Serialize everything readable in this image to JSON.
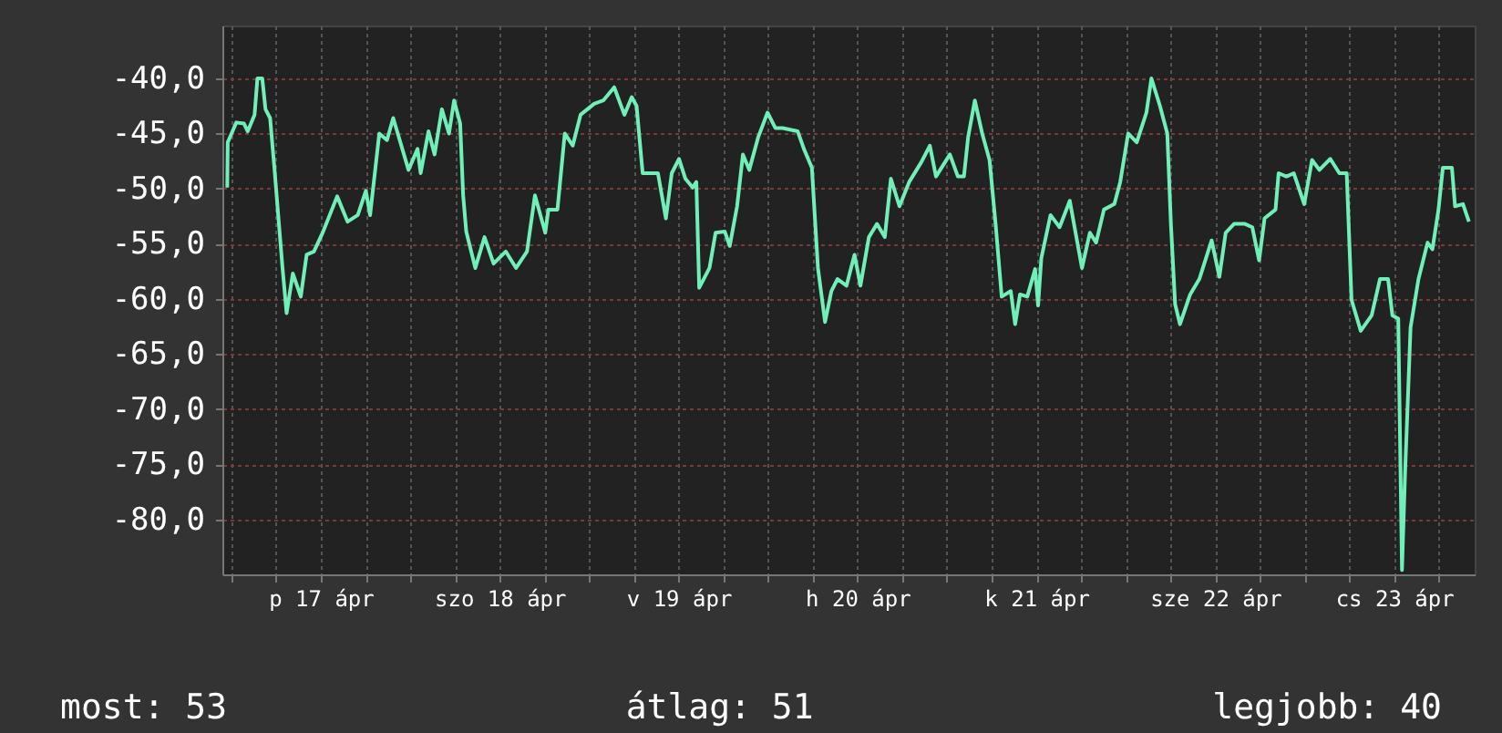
{
  "chart_data": {
    "type": "line",
    "annotations": [
      "most: 53",
      "átlag: 51",
      "legjobb: 40"
    ],
    "x": [
      "--04-16T23:27",
      "--04-16T23:31",
      "--04-17T00:40",
      "--04-17T01:42",
      "--04-17T02:12",
      "--04-17T03:07",
      "--04-17T03:30",
      "--04-17T04:09",
      "--04-17T04:35",
      "--04-17T05:12",
      "--04-17T05:48",
      "--04-17T06:52",
      "--04-17T07:25",
      "--04-17T08:15",
      "--04-17T09:19",
      "--04-17T10:06",
      "--04-17T11:05",
      "--04-17T12:19",
      "--04-17T14:12",
      "--04-17T15:36",
      "--04-17T16:58",
      "--04-17T18:03",
      "--04-17T18:37",
      "--04-17T19:51",
      "--04-17T20:53",
      "--04-17T21:43",
      "--04-17T23:46",
      "--04-18T00:59",
      "--04-18T01:24",
      "--04-18T02:27",
      "--04-18T03:16",
      "--04-18T04:15",
      "--04-18T05:12",
      "--04-18T05:53",
      "--04-18T06:42",
      "--04-18T07:06",
      "--04-18T07:31",
      "--04-18T08:44",
      "--04-18T09:58",
      "--04-18T11:11",
      "--04-18T12:49",
      "--04-18T14:12",
      "--04-18T15:40",
      "--04-18T16:44",
      "--04-18T18:07",
      "--04-18T18:32",
      "--04-18T19:45",
      "--04-18T20:44",
      "--04-18T21:48",
      "--04-18T22:51",
      "--04-19T00:40",
      "--04-19T01:54",
      "--04-19T03:22",
      "--04-19T04:44",
      "--04-19T05:43",
      "--04-19T06:22",
      "--04-19T07:11",
      "--04-19T09:14",
      "--04-19T10:18",
      "--04-19T11:05",
      "--04-19T12:04",
      "--04-19T12:55",
      "--04-19T13:54",
      "--04-19T14:23",
      "--04-19T14:46",
      "--04-19T16:09",
      "--04-19T16:58",
      "--04-19T18:12",
      "--04-19T18:52",
      "--04-19T19:51",
      "--04-19T20:38",
      "--04-19T21:29",
      "--04-19T22:42",
      "--04-19T23:56",
      "--04-20T00:59",
      "--04-20T01:58",
      "--04-20T03:59",
      "--04-20T04:49",
      "--04-20T05:53",
      "--04-20T06:42",
      "--04-20T07:39",
      "--04-20T08:30",
      "--04-20T09:19",
      "--04-20T10:32",
      "--04-20T11:36",
      "--04-20T12:24",
      "--04-20T13:32",
      "--04-20T14:37",
      "--04-20T15:40",
      "--04-20T16:29",
      "--04-20T17:38",
      "--04-20T18:56",
      "--04-20T20:34",
      "--04-20T21:43",
      "--04-20T22:32",
      "--04-21T00:24",
      "--04-21T01:28",
      "--04-21T02:17",
      "--04-21T02:51",
      "--04-21T03:45",
      "--04-21T04:44",
      "--04-21T05:43",
      "--04-21T06:32",
      "--04-21T07:21",
      "--04-21T08:34",
      "--04-21T09:09",
      "--04-21T09:48",
      "--04-21T10:47",
      "--04-21T11:50",
      "--04-21T12:14",
      "--04-21T12:40",
      "--04-21T13:54",
      "--04-21T15:07",
      "--04-21T16:29",
      "--04-21T18:07",
      "--04-21T19:11",
      "--04-21T20:01",
      "--04-21T21:04",
      "--04-21T22:28",
      "--04-21T23:15",
      "--04-22T00:19",
      "--04-22T01:28",
      "--04-22T02:46",
      "--04-22T03:26",
      "--04-22T04:35",
      "--04-22T05:34",
      "--04-22T06:03",
      "--04-22T06:37",
      "--04-22T07:16",
      "--04-22T08:38",
      "--04-22T09:52",
      "--04-22T11:31",
      "--04-22T12:33",
      "--04-22T13:24",
      "--04-22T14:31",
      "--04-22T15:59",
      "--04-22T16:58",
      "--04-22T17:53",
      "--04-22T18:37",
      "--04-22T20:05",
      "--04-22T20:30",
      "--04-22T21:33",
      "--04-22T22:32",
      "--04-22T23:56",
      "--04-23T00:59",
      "--04-23T01:58",
      "--04-23T03:26",
      "--04-23T04:39",
      "--04-23T05:38",
      "--04-23T06:17",
      "--04-23T07:31",
      "--04-23T08:59",
      "--04-23T10:06",
      "--04-23T11:11",
      "--04-23T11:46",
      "--04-23T12:33",
      "--04-23T13:03",
      "--04-23T13:28",
      "--04-23T14:12",
      "--04-23T15:16",
      "--04-23T16:29",
      "--04-23T17:08",
      "--04-23T17:57",
      "--04-23T18:32",
      "--04-23T19:45",
      "--04-23T20:10",
      "--04-23T21:14",
      "--04-23T22:02"
    ],
    "series": [
      {
        "color": "#70f0b8",
        "values": [
          -49.9,
          -45.8,
          -44.0,
          -44.1,
          -44.8,
          -43.3,
          -40.0,
          -40.0,
          -42.8,
          -43.6,
          -48.3,
          -57.2,
          -61.3,
          -57.7,
          -59.8,
          -56.0,
          -55.7,
          -53.9,
          -50.7,
          -53.0,
          -52.4,
          -50.2,
          -52.4,
          -45.0,
          -45.6,
          -43.6,
          -48.3,
          -46.4,
          -48.6,
          -44.8,
          -46.9,
          -42.8,
          -45.0,
          -42.0,
          -44.1,
          -50.6,
          -53.9,
          -57.2,
          -54.4,
          -56.8,
          -55.7,
          -57.2,
          -55.7,
          -50.6,
          -54.0,
          -51.9,
          -51.9,
          -45.0,
          -46.1,
          -43.3,
          -42.3,
          -42.0,
          -40.8,
          -43.3,
          -41.7,
          -42.5,
          -48.6,
          -48.6,
          -52.7,
          -48.6,
          -47.3,
          -49.1,
          -49.9,
          -49.4,
          -59.0,
          -57.2,
          -54.0,
          -53.9,
          -55.2,
          -51.6,
          -46.9,
          -48.3,
          -45.3,
          -43.1,
          -44.5,
          -44.5,
          -44.8,
          -46.4,
          -48.1,
          -57.2,
          -62.1,
          -59.3,
          -58.2,
          -58.8,
          -56.0,
          -58.8,
          -54.4,
          -53.2,
          -54.4,
          -49.1,
          -51.6,
          -49.4,
          -47.6,
          -46.1,
          -48.9,
          -46.9,
          -48.9,
          -48.9,
          -45.3,
          -42.0,
          -45.0,
          -47.4,
          -53.2,
          -59.8,
          -59.3,
          -62.3,
          -59.6,
          -59.8,
          -57.3,
          -60.6,
          -56.3,
          -52.4,
          -53.5,
          -51.1,
          -57.2,
          -54.0,
          -54.9,
          -51.9,
          -51.4,
          -49.4,
          -45.0,
          -45.8,
          -43.1,
          -40.0,
          -42.5,
          -45.0,
          -53.2,
          -60.5,
          -62.3,
          -59.6,
          -58.2,
          -54.7,
          -58.0,
          -54.0,
          -53.2,
          -53.2,
          -53.5,
          -56.5,
          -52.7,
          -51.9,
          -48.6,
          -48.9,
          -48.6,
          -51.4,
          -47.4,
          -48.3,
          -47.3,
          -48.6,
          -48.6,
          -60.1,
          -62.9,
          -61.5,
          -58.2,
          -58.2,
          -61.5,
          -61.8,
          -84.6,
          -75.8,
          -62.6,
          -58.2,
          -54.9,
          -55.5,
          -51.9,
          -48.1,
          -48.1,
          -51.6,
          -51.4,
          -53.0
        ]
      }
    ],
    "xlim": [
      "--04-16T22:48",
      "--04-23T22:48"
    ],
    "xticks": [
      {
        "value": "--04-17T00:00",
        "label": null
      },
      {
        "value": "--04-17T06:00",
        "label": null
      },
      {
        "value": "--04-17T12:00",
        "label": "p 17 ápr"
      },
      {
        "value": "--04-17T18:00",
        "label": null
      },
      {
        "value": "--04-18T00:00",
        "label": null
      },
      {
        "value": "--04-18T06:00",
        "label": null
      },
      {
        "value": "--04-18T12:00",
        "label": "szo 18 ápr"
      },
      {
        "value": "--04-18T18:00",
        "label": null
      },
      {
        "value": "--04-19T00:00",
        "label": null
      },
      {
        "value": "--04-19T06:00",
        "label": null
      },
      {
        "value": "--04-19T12:00",
        "label": "v 19 ápr"
      },
      {
        "value": "--04-19T18:00",
        "label": null
      },
      {
        "value": "--04-20T00:00",
        "label": null
      },
      {
        "value": "--04-20T06:00",
        "label": null
      },
      {
        "value": "--04-20T12:00",
        "label": "h 20 ápr"
      },
      {
        "value": "--04-20T18:00",
        "label": null
      },
      {
        "value": "--04-21T00:00",
        "label": null
      },
      {
        "value": "--04-21T06:00",
        "label": null
      },
      {
        "value": "--04-21T12:00",
        "label": "k 21 ápr"
      },
      {
        "value": "--04-21T18:00",
        "label": null
      },
      {
        "value": "--04-22T00:00",
        "label": null
      },
      {
        "value": "--04-22T06:00",
        "label": null
      },
      {
        "value": "--04-22T12:00",
        "label": "sze 22 ápr"
      },
      {
        "value": "--04-22T18:00",
        "label": null
      },
      {
        "value": "--04-23T00:00",
        "label": null
      },
      {
        "value": "--04-23T06:00",
        "label": null
      },
      {
        "value": "--04-23T12:00",
        "label": "cs 23 ápr"
      },
      {
        "value": "--04-23T18:00",
        "label": null
      }
    ],
    "ylim": [
      -85,
      -35.2
    ],
    "yticks": [
      {
        "value": -40,
        "label": "-40,0"
      },
      {
        "value": -45,
        "label": "-45,0"
      },
      {
        "value": -50,
        "label": "-50,0"
      },
      {
        "value": -55,
        "label": "-55,0"
      },
      {
        "value": -60,
        "label": "-60,0"
      },
      {
        "value": -65,
        "label": "-65,0"
      },
      {
        "value": -70,
        "label": "-70,0"
      },
      {
        "value": -75,
        "label": "-75,0"
      },
      {
        "value": -80,
        "label": "-80,0"
      }
    ],
    "grid": true
  }
}
